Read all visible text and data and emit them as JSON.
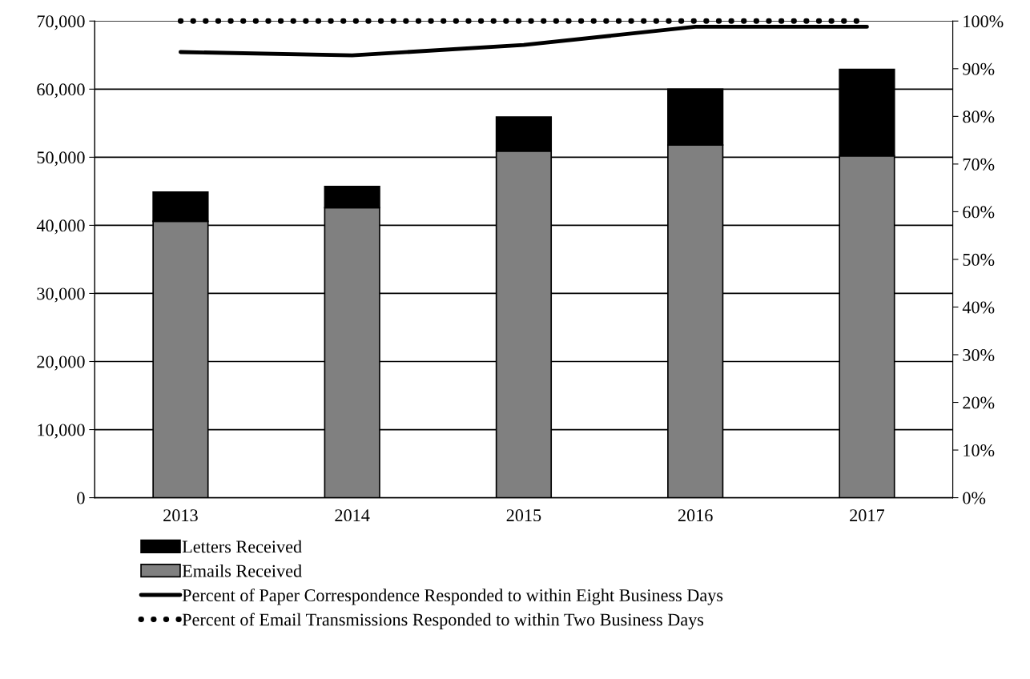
{
  "chart_data": {
    "type": "bar",
    "stacked": true,
    "categories": [
      "2013",
      "2014",
      "2015",
      "2016",
      "2017"
    ],
    "series": [
      {
        "name": "Emails Received",
        "color": "#808080",
        "values": [
          40600,
          42600,
          50900,
          51800,
          50200
        ]
      },
      {
        "name": "Letters Received",
        "color": "#000000",
        "values": [
          4300,
          3100,
          5000,
          8200,
          12700
        ]
      },
      {
        "name": "Percent of Paper Correspondence Responded to within Eight Business Days",
        "type": "line",
        "axis": "y2",
        "color": "#000000",
        "line_style": "solid",
        "values": [
          93.5,
          92.8,
          95.0,
          98.8,
          98.8
        ]
      },
      {
        "name": "Percent of Email Transmissions Responded to within Two Business Days",
        "type": "line",
        "axis": "y2",
        "color": "#000000",
        "line_style": "dotted",
        "values": [
          100,
          100,
          100,
          100,
          100
        ]
      }
    ],
    "ylim": [
      0,
      70000
    ],
    "yticks": [
      {
        "value": 0,
        "label": "0"
      },
      {
        "value": 10000,
        "label": "10,000"
      },
      {
        "value": 20000,
        "label": "20,000"
      },
      {
        "value": 30000,
        "label": "30,000"
      },
      {
        "value": 40000,
        "label": "40,000"
      },
      {
        "value": 50000,
        "label": "50,000"
      },
      {
        "value": 60000,
        "label": "60,000"
      },
      {
        "value": 70000,
        "label": "70,000"
      }
    ],
    "y2lim": [
      0,
      100
    ],
    "y2ticks": [
      {
        "value": 0,
        "label": "0%"
      },
      {
        "value": 10,
        "label": "10%"
      },
      {
        "value": 20,
        "label": "20%"
      },
      {
        "value": 30,
        "label": "30%"
      },
      {
        "value": 40,
        "label": "40%"
      },
      {
        "value": 50,
        "label": "50%"
      },
      {
        "value": 60,
        "label": "60%"
      },
      {
        "value": 70,
        "label": "70%"
      },
      {
        "value": 80,
        "label": "80%"
      },
      {
        "value": 90,
        "label": "90%"
      },
      {
        "value": 100,
        "label": "100%"
      }
    ],
    "grid": "y",
    "legend": "bottom"
  }
}
